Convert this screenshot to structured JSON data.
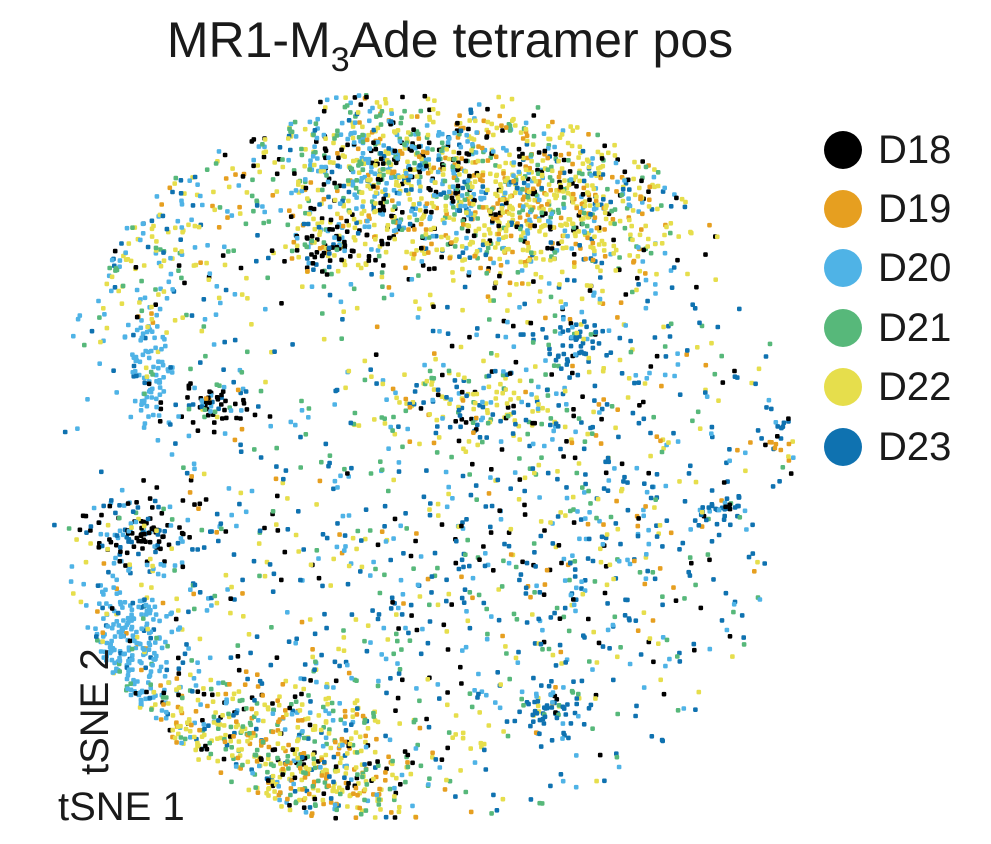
{
  "chart_data": {
    "type": "scatter",
    "title": {
      "prefix": "MR1-M",
      "subscript": "3",
      "suffix": "Ade tetramer pos"
    },
    "xlabel": "tSNE 1",
    "ylabel": "tSNE 2",
    "axes": "none",
    "grid": false,
    "legend_placement": "right",
    "series": [
      {
        "name": "D18",
        "color": "#000000"
      },
      {
        "name": "D19",
        "color": "#e69f20"
      },
      {
        "name": "D20",
        "color": "#4fb3e6"
      },
      {
        "name": "D21",
        "color": "#57b87a"
      },
      {
        "name": "D22",
        "color": "#e6de4c"
      },
      {
        "name": "D23",
        "color": "#0f72b0"
      }
    ]
  }
}
